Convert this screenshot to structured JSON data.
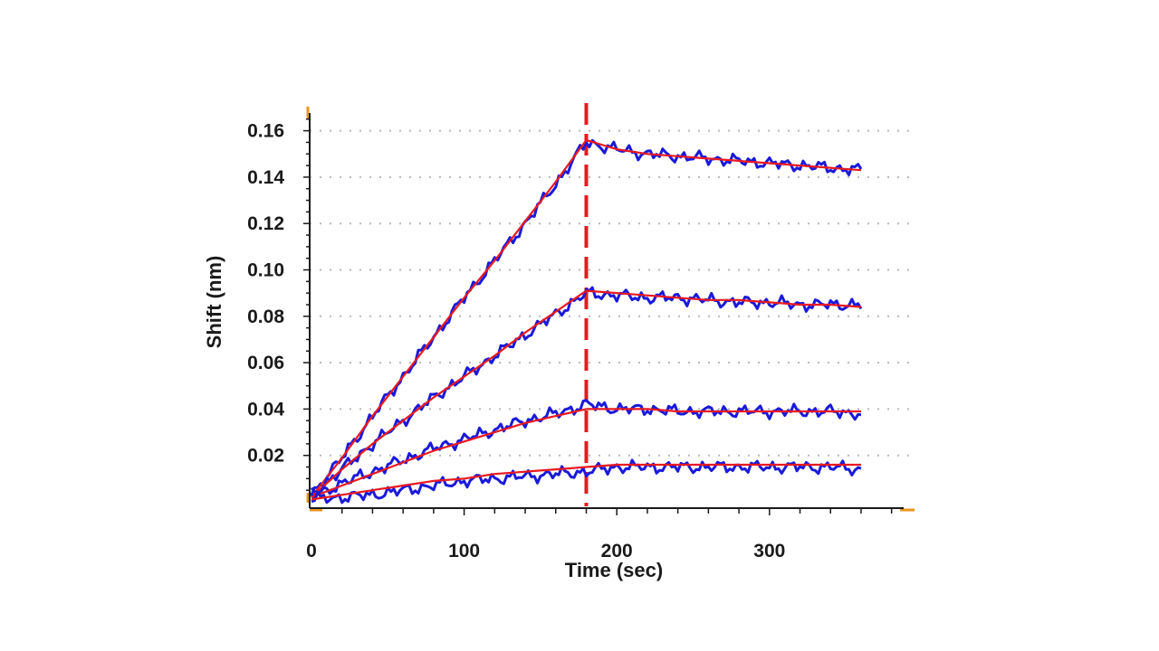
{
  "chart_data": {
    "type": "line",
    "title": "",
    "xlabel": "Time (sec)",
    "ylabel": "Shift (nm)",
    "xlim": [
      0,
      390
    ],
    "ylim": [
      0,
      0.165
    ],
    "x_ticks": [
      0,
      100,
      200,
      300
    ],
    "x_tick_labels": [
      "0",
      "100",
      "200",
      "300"
    ],
    "y_ticks": [
      0.02,
      0.04,
      0.06,
      0.08,
      0.1,
      0.12,
      0.14,
      0.16
    ],
    "y_tick_labels": [
      "0.02",
      "0.04",
      "0.06",
      "0.08",
      "0.10",
      "0.12",
      "0.14",
      "0.16"
    ],
    "grid": "horizontal dotted",
    "legend": "none",
    "switch_time": 180,
    "colors": {
      "measured": "#1a1adb",
      "fit": "#e8191f",
      "divider": "#e8191f",
      "axis": "#1a1a1a",
      "grid": "#b8b8b8",
      "marker": "#e8961e"
    },
    "series": [
      {
        "x": [
          0,
          20,
          40,
          60,
          80,
          100,
          120,
          140,
          160,
          180,
          200,
          220,
          240,
          260,
          280,
          300,
          320,
          340,
          360
        ],
        "measured": [
          0.003,
          0.019,
          0.037,
          0.054,
          0.071,
          0.088,
          0.104,
          0.12,
          0.137,
          0.155,
          0.152,
          0.15,
          0.149,
          0.148,
          0.147,
          0.146,
          0.145,
          0.144,
          0.143
        ],
        "fit": [
          0.002,
          0.019,
          0.037,
          0.054,
          0.071,
          0.088,
          0.104,
          0.121,
          0.138,
          0.156,
          0.152,
          0.15,
          0.149,
          0.148,
          0.147,
          0.146,
          0.145,
          0.144,
          0.143
        ]
      },
      {
        "x": [
          0,
          20,
          40,
          60,
          80,
          100,
          120,
          140,
          160,
          180,
          200,
          220,
          240,
          260,
          280,
          300,
          320,
          340,
          360
        ],
        "measured": [
          0.003,
          0.014,
          0.025,
          0.035,
          0.045,
          0.054,
          0.063,
          0.072,
          0.081,
          0.09,
          0.089,
          0.088,
          0.088,
          0.087,
          0.086,
          0.086,
          0.085,
          0.085,
          0.085
        ],
        "fit": [
          0.002,
          0.014,
          0.025,
          0.035,
          0.045,
          0.054,
          0.063,
          0.073,
          0.082,
          0.091,
          0.09,
          0.089,
          0.088,
          0.087,
          0.087,
          0.086,
          0.085,
          0.085,
          0.084
        ]
      },
      {
        "x": [
          0,
          20,
          40,
          60,
          80,
          100,
          120,
          140,
          160,
          180,
          200,
          220,
          240,
          260,
          280,
          300,
          320,
          340,
          360
        ],
        "measured": [
          0.002,
          0.008,
          0.013,
          0.018,
          0.023,
          0.027,
          0.031,
          0.035,
          0.038,
          0.042,
          0.04,
          0.04,
          0.039,
          0.039,
          0.039,
          0.039,
          0.039,
          0.039,
          0.038
        ],
        "fit": [
          0.002,
          0.007,
          0.012,
          0.017,
          0.022,
          0.026,
          0.03,
          0.034,
          0.037,
          0.04,
          0.04,
          0.04,
          0.039,
          0.039,
          0.039,
          0.039,
          0.039,
          0.039,
          0.039
        ]
      },
      {
        "x": [
          0,
          20,
          40,
          60,
          80,
          100,
          120,
          140,
          160,
          180,
          200,
          220,
          240,
          260,
          280,
          300,
          320,
          340,
          360
        ],
        "measured": [
          0.001,
          0.002,
          0.003,
          0.005,
          0.007,
          0.009,
          0.01,
          0.011,
          0.012,
          0.013,
          0.015,
          0.015,
          0.015,
          0.015,
          0.015,
          0.015,
          0.015,
          0.015,
          0.014
        ],
        "fit": [
          0.001,
          0.003,
          0.005,
          0.007,
          0.009,
          0.01,
          0.012,
          0.013,
          0.014,
          0.015,
          0.016,
          0.016,
          0.016,
          0.016,
          0.016,
          0.016,
          0.016,
          0.016,
          0.016
        ]
      }
    ]
  }
}
